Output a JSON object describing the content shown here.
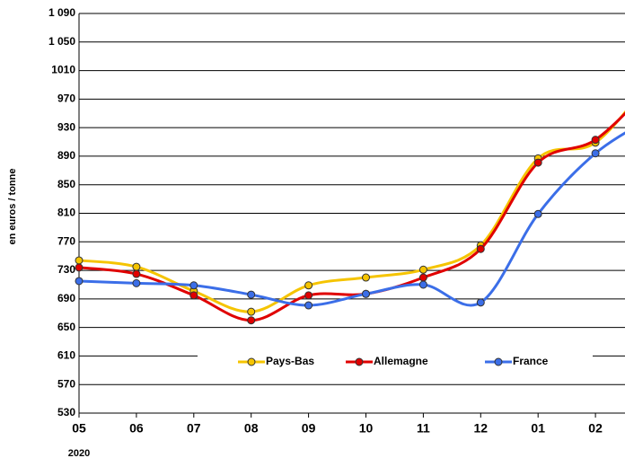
{
  "chart_data": {
    "type": "line",
    "y_label": "en euros / tonne",
    "year_label": "2020",
    "categories": [
      "05",
      "06",
      "07",
      "08",
      "09",
      "10",
      "11",
      "12",
      "01",
      "02",
      null
    ],
    "series": [
      {
        "name": "Pays-Bas",
        "color": "#f5c400",
        "values": [
          744,
          735,
          701,
          672,
          709,
          720,
          731,
          765,
          887,
          909,
          1000
        ]
      },
      {
        "name": "Allemagne",
        "color": "#e00000",
        "values": [
          734,
          725,
          695,
          660,
          695,
          697,
          720,
          760,
          881,
          913,
          990
        ]
      },
      {
        "name": "France",
        "color": "#3b6ee8",
        "values": [
          715,
          712,
          709,
          696,
          681,
          697,
          710,
          685,
          809,
          894,
          945
        ]
      }
    ],
    "ylim": [
      530,
      1090
    ],
    "yticks": [
      530,
      570,
      610,
      650,
      690,
      730,
      770,
      810,
      850,
      890,
      930,
      970,
      1010,
      {
        "value": 1050,
        "label": "1 050"
      },
      {
        "value": 1090,
        "label": "1 090"
      }
    ],
    "grid": true,
    "legend": "bottom"
  }
}
